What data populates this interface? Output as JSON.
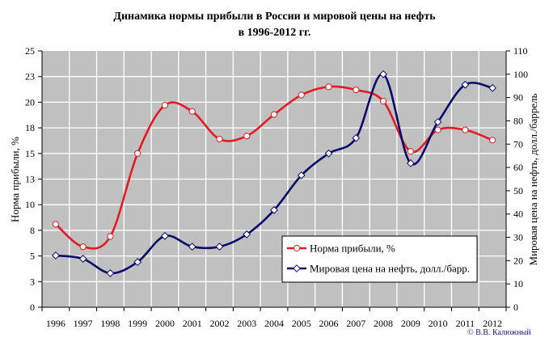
{
  "title": {
    "line1": "Динамика нормы прибыли в России и мировой цены на нефть",
    "line2": "в 1996-2012 гг."
  },
  "copyright": "© В.В. Калюжный",
  "colors": {
    "plot_bg": "#c0c0c0",
    "grid": "#ffffff",
    "profit": "#e31b23",
    "oil": "#0a0a6e",
    "copyright": "#1a1a8c"
  },
  "chart_data": {
    "type": "line",
    "title": "Динамика нормы прибыли в России и мировой цены на нефть в 1996-2012 гг.",
    "xlabel": "",
    "ylabel": "Норма прибыли, %",
    "y2label": "Мировая цена на нефть, долл./баррель",
    "x": [
      "1996",
      "1997",
      "1998",
      "1999",
      "2000",
      "2001",
      "2002",
      "2003",
      "2004",
      "2005",
      "2006",
      "2007",
      "2008",
      "2009",
      "2010",
      "2011",
      "2012"
    ],
    "ylim": [
      0,
      25
    ],
    "y_ticks": [
      "0",
      "3",
      "5",
      "8",
      "10",
      "13",
      "15",
      "18",
      "20",
      "23",
      "25"
    ],
    "y2lim": [
      0,
      110
    ],
    "y2_ticks": [
      "0",
      "10",
      "20",
      "30",
      "40",
      "50",
      "60",
      "70",
      "80",
      "90",
      "100",
      "110"
    ],
    "grid": true,
    "legend_position": "lower right (inside plot)",
    "series": [
      {
        "name": "Норма прибыли, %",
        "axis": "left",
        "color": "#e31b23",
        "marker": "circle",
        "values": [
          8.1,
          5.9,
          6.9,
          15.0,
          19.7,
          19.1,
          16.4,
          16.7,
          18.8,
          20.7,
          21.5,
          21.2,
          20.1,
          15.2,
          17.3,
          17.3,
          16.3
        ]
      },
      {
        "name": "Мировая цена на нефть, долл./барр.",
        "axis": "right",
        "color": "#0a0a6e",
        "marker": "diamond",
        "values": [
          22.2,
          20.8,
          14.6,
          19.4,
          30.6,
          26.0,
          26.0,
          31.3,
          41.7,
          56.6,
          66.0,
          72.6,
          100.0,
          61.8,
          79.5,
          95.5,
          94.1
        ]
      }
    ]
  },
  "legend": {
    "items": [
      {
        "label": "Норма прибыли, %"
      },
      {
        "label": "Мировая цена на нефть, долл./барр."
      }
    ]
  }
}
